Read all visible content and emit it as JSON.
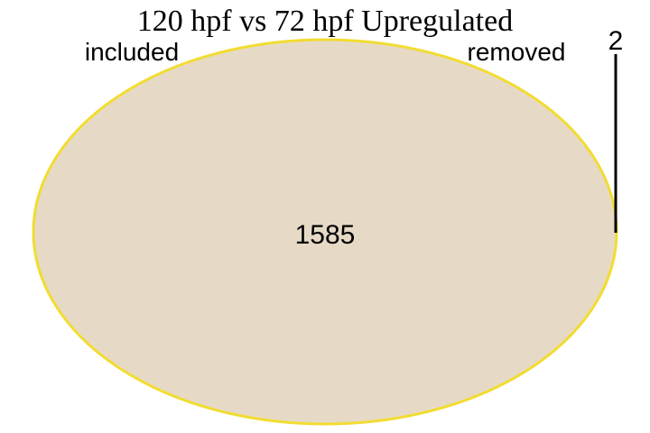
{
  "diagram": {
    "title": "120 hpf vs 72 hpf Upregulated",
    "sets": [
      {
        "name": "included",
        "fill": "#e6dac6",
        "stroke": "#f2dc32"
      },
      {
        "name": "removed"
      }
    ],
    "regions": {
      "included_only": "1585",
      "removed_only": "2"
    },
    "leader_line_color": "#000000"
  }
}
